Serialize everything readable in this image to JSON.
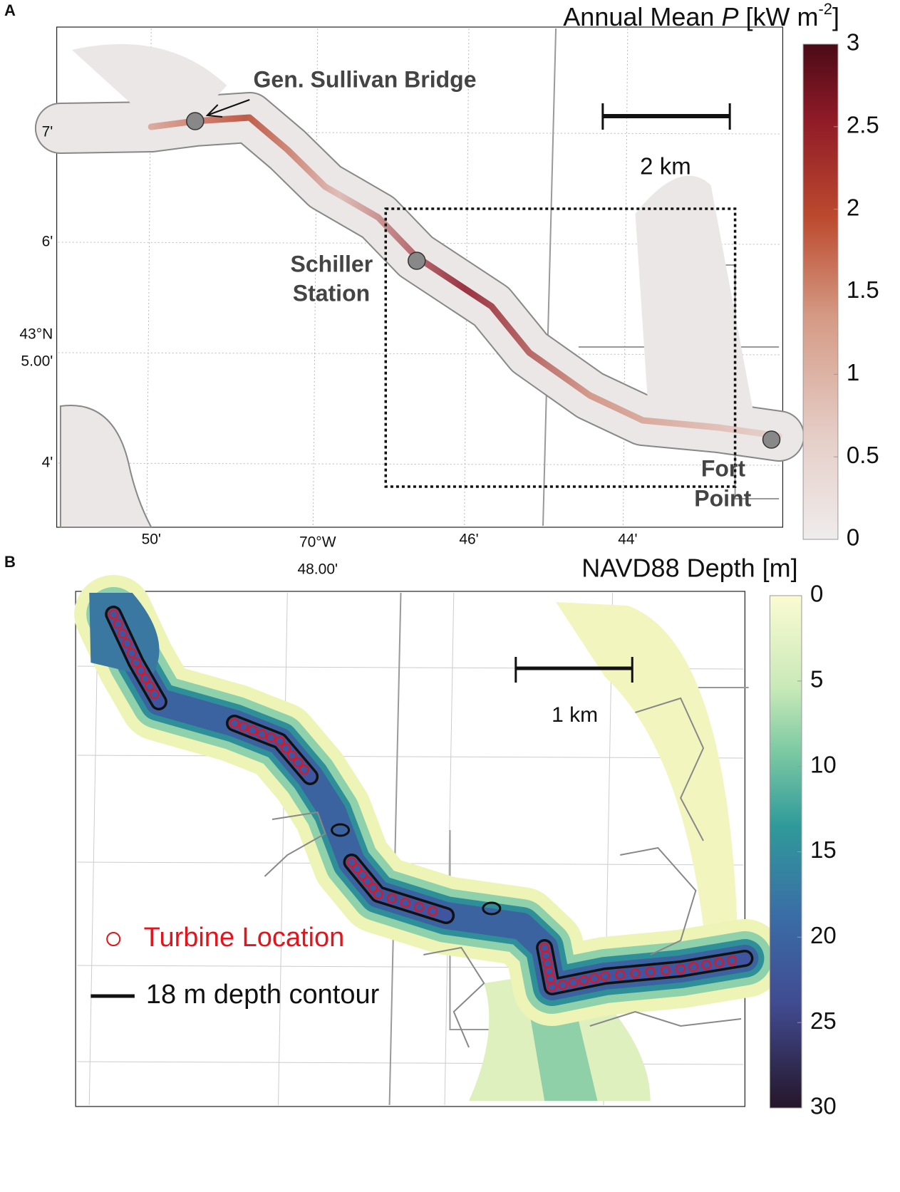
{
  "panel_a": {
    "letter": "A",
    "colorbar": {
      "title_prefix": "Annual Mean ",
      "title_symbol": "P",
      "title_unit": " [kW m",
      "title_exp": "-2",
      "title_end": "]",
      "ticks": [
        0,
        0.5,
        1,
        1.5,
        2,
        2.5,
        3
      ]
    },
    "x_labels": [
      "50'",
      "70°W",
      "48.00'",
      "46'",
      "44'"
    ],
    "y_labels": [
      "7'",
      "6'",
      "43°N",
      "5.00'",
      "4'"
    ],
    "places": {
      "bridge": "Gen. Sullivan Bridge",
      "schiller_1": "Schiller",
      "schiller_2": "Station",
      "fort_1": "Fort",
      "fort_2": "Point"
    },
    "scale_label": "2 km"
  },
  "panel_b": {
    "letter": "B",
    "colorbar": {
      "title": "NAVD88 Depth [m]",
      "ticks": [
        0,
        5,
        10,
        15,
        20,
        25,
        30
      ]
    },
    "scale_label": "1 km",
    "legend": {
      "turbine": "Turbine Location",
      "contour": "18 m depth contour"
    }
  }
}
